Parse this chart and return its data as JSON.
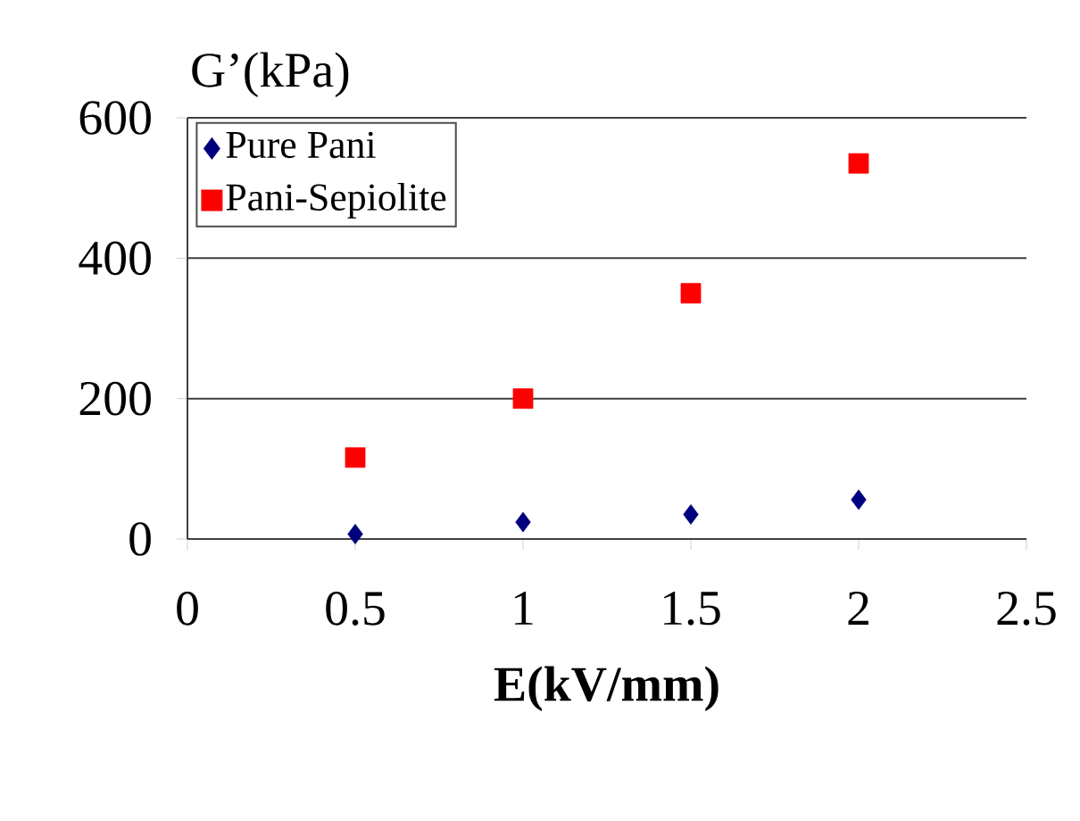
{
  "chart_data": {
    "type": "scatter",
    "ylabel": "G’(kPa)",
    "xlabel": "E(kV/mm)",
    "x": [
      0.5,
      1,
      1.5,
      2
    ],
    "series": [
      {
        "name": "Pure Pani",
        "color": "#00007f",
        "marker": "diamond",
        "values": [
          7,
          24,
          35,
          56
        ]
      },
      {
        "name": "Pani-Sepiolite",
        "color": "#ff0000",
        "marker": "square",
        "values": [
          116,
          200,
          350,
          535
        ]
      }
    ],
    "xlim": [
      0,
      2.5
    ],
    "xticks": [
      0,
      0.5,
      1,
      1.5,
      2,
      2.5
    ],
    "ylim": [
      0,
      600
    ],
    "yticks": [
      0,
      200,
      400,
      600
    ],
    "grid": "y",
    "legend": "top left"
  }
}
